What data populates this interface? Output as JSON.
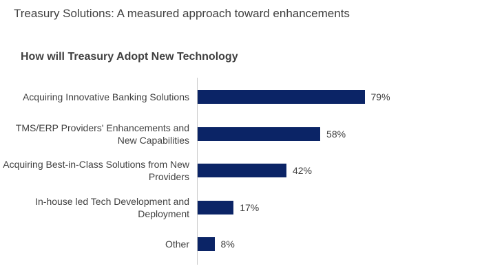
{
  "page_heading": "Treasury Solutions: A measured approach toward enhancements",
  "colors": {
    "bar": "#0b2466",
    "axis": "#c8c8c8",
    "text": "#404040"
  },
  "chart_data": {
    "type": "bar",
    "orientation": "horizontal",
    "title": "How will Treasury Adopt New Technology",
    "categories": [
      "Acquiring Innovative Banking Solutions",
      "TMS/ERP Providers' Enhancements and New Capabilities",
      "Acquiring Best-in-Class Solutions from New Providers",
      "In-house led Tech Development and Deployment",
      "Other"
    ],
    "values": [
      79,
      58,
      42,
      17,
      8
    ],
    "value_labels": [
      "79%",
      "58%",
      "42%",
      "17%",
      "8%"
    ],
    "unit": "%",
    "xlabel": "",
    "ylabel": "",
    "xlim": [
      0,
      100
    ],
    "grid": false
  }
}
